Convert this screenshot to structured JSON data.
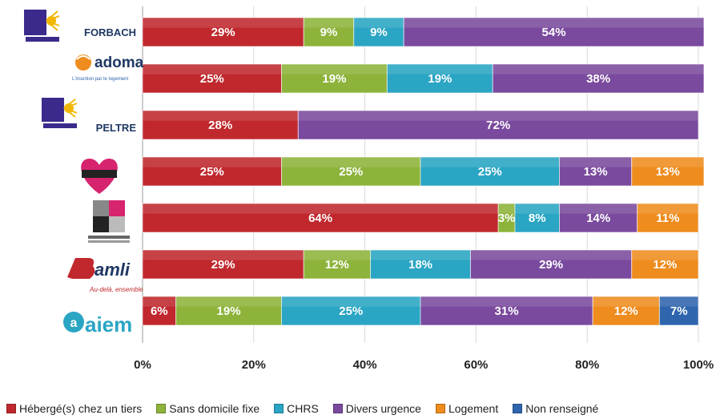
{
  "chart_data": {
    "type": "bar",
    "orientation": "horizontal",
    "stacked": true,
    "categories": [
      "FORBACH",
      "adoma",
      "PELTRE",
      "",
      "",
      "amli",
      "aiem"
    ],
    "category_display": [
      "text",
      "logo",
      "text",
      "logo",
      "logo",
      "logo",
      "logo"
    ],
    "series": [
      {
        "name": "Hébergé(s) chez un tiers",
        "color": "#c0282d",
        "values": [
          29,
          25,
          28,
          25,
          64,
          29,
          6
        ]
      },
      {
        "name": "Sans domicile fixe",
        "color": "#8db33a",
        "values": [
          9,
          19,
          0,
          25,
          3,
          12,
          19
        ]
      },
      {
        "name": "CHRS",
        "color": "#2aa5c3",
        "values": [
          9,
          19,
          0,
          25,
          8,
          18,
          25
        ]
      },
      {
        "name": "Divers urgence",
        "color": "#7a4a9e",
        "values": [
          54,
          38,
          72,
          13,
          14,
          29,
          31
        ]
      },
      {
        "name": "Logement",
        "color": "#ee8c1e",
        "values": [
          0,
          0,
          0,
          13,
          11,
          12,
          12
        ]
      },
      {
        "name": "Non renseigné",
        "color": "#2f65ad",
        "values": [
          0,
          0,
          0,
          0,
          0,
          0,
          7
        ]
      }
    ],
    "xlim": [
      0,
      100
    ],
    "x_ticks": [
      "0%",
      "20%",
      "40%",
      "60%",
      "80%",
      "100%"
    ],
    "title": "",
    "xlabel": "",
    "ylabel": "",
    "grid": true,
    "legend": "bottom"
  },
  "legend": [
    {
      "label": "Hébergé(s) chez un tiers",
      "color": "#c0282d"
    },
    {
      "label": "Sans domicile fixe",
      "color": "#8db33a"
    },
    {
      "label": "CHRS",
      "color": "#2aa5c3"
    },
    {
      "label": "Divers urgence",
      "color": "#7a4a9e"
    },
    {
      "label": "Logement",
      "color": "#ee8c1e"
    },
    {
      "label": "Non renseigné",
      "color": "#2f65ad"
    }
  ],
  "logos": {
    "emmaus_icon": "emmaus-logo-icon",
    "adoma_tagline": "L'insertion par le logement",
    "amli_tagline": "Au-delà, ensemble",
    "aiem_name": "aiem"
  }
}
